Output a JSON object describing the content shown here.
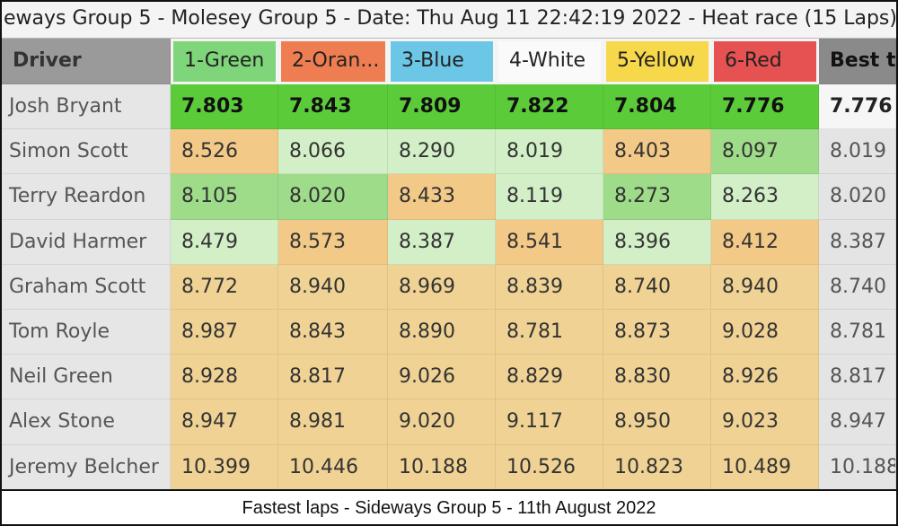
{
  "window_title": "eways Group 5 - Molesey Group 5 - Date: Thu Aug 11 22:42:19 2022 - Heat race (15 Laps)",
  "table": {
    "header": [
      "Driver",
      "1-Green",
      "2-Oran...",
      "3-Blue",
      "4-White",
      "5-Yellow",
      "6-Red",
      "Best ti"
    ],
    "rows": [
      [
        "Josh Bryant",
        "7.803",
        "7.843",
        "7.809",
        "7.822",
        "7.804",
        "7.776",
        "7.776"
      ],
      [
        "Simon Scott",
        "8.526",
        "8.066",
        "8.290",
        "8.019",
        "8.403",
        "8.097",
        "8.019"
      ],
      [
        "Terry Reardon",
        "8.105",
        "8.020",
        "8.433",
        "8.119",
        "8.273",
        "8.263",
        "8.020"
      ],
      [
        "David Harmer",
        "8.479",
        "8.573",
        "8.387",
        "8.541",
        "8.396",
        "8.412",
        "8.387"
      ],
      [
        "Graham Scott",
        "8.772",
        "8.940",
        "8.969",
        "8.839",
        "8.740",
        "8.940",
        "8.740"
      ],
      [
        "Tom Royle",
        "8.987",
        "8.843",
        "8.890",
        "8.781",
        "8.873",
        "9.028",
        "8.781"
      ],
      [
        "Neil Green",
        "8.928",
        "8.817",
        "9.026",
        "8.829",
        "8.830",
        "8.926",
        "8.817"
      ],
      [
        "Alex Stone",
        "8.947",
        "8.981",
        "9.020",
        "9.117",
        "8.950",
        "9.023",
        "8.947"
      ],
      [
        "Jeremy Belcher",
        "10.399",
        "10.446",
        "10.188",
        "10.526",
        "10.823",
        "10.489",
        "10.188"
      ]
    ]
  },
  "caption": "Fastest laps - Sideways Group 5 - 11th August 2022"
}
